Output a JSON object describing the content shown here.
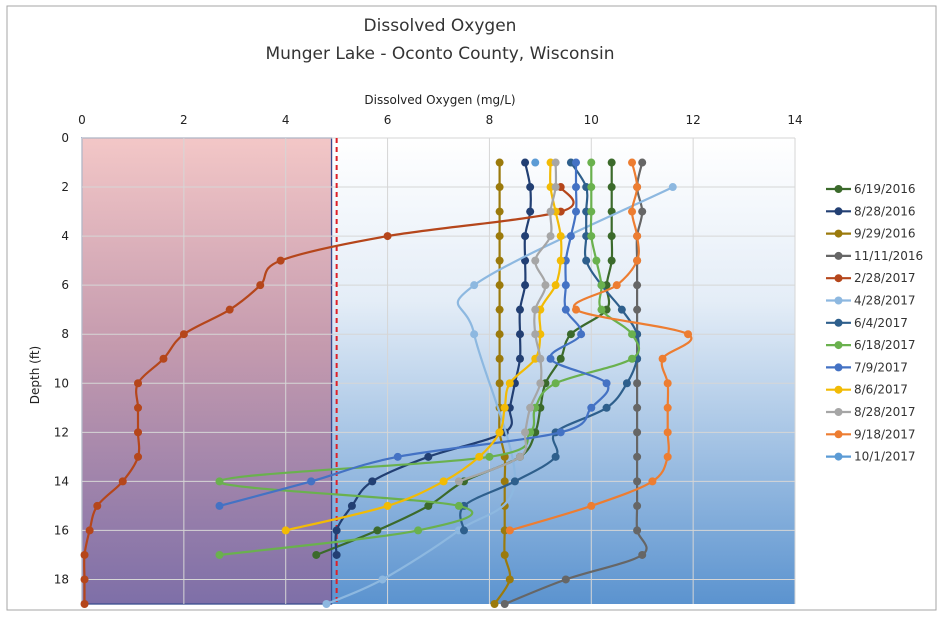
{
  "chart_data": {
    "type": "line",
    "title": "Dissolved Oxygen",
    "subtitle": "Munger Lake - Oconto County, Wisconsin",
    "xlabel": "Dissolved Oxygen (mg/L)",
    "ylabel": "Depth (ft)",
    "xlim": [
      0,
      14
    ],
    "ylim": [
      0,
      19
    ],
    "y_inverted": true,
    "x_axis_position": "top",
    "x_ticks": [
      "0",
      "2",
      "4",
      "6",
      "8",
      "10",
      "12",
      "14"
    ],
    "y_ticks": [
      "0",
      "2",
      "4",
      "6",
      "8",
      "10",
      "12",
      "14",
      "16",
      "18"
    ],
    "grid": true,
    "legend_position": "right",
    "threshold": {
      "value": 5,
      "style": "dashed",
      "color": "#dd1f26"
    },
    "shaded_region": {
      "from": 0,
      "to": 4.9,
      "color": "#c87a8a"
    },
    "series": [
      {
        "name": "6/19/2016",
        "color": "#3b6a2b",
        "points": [
          [
            10.4,
            1
          ],
          [
            10.4,
            2
          ],
          [
            10.4,
            3
          ],
          [
            10.4,
            4
          ],
          [
            10.4,
            5
          ],
          [
            10.3,
            6
          ],
          [
            10.3,
            7
          ],
          [
            9.6,
            8
          ],
          [
            9.4,
            9
          ],
          [
            9.1,
            10
          ],
          [
            9.0,
            11
          ],
          [
            8.9,
            12
          ],
          [
            8.6,
            13
          ],
          [
            7.5,
            14
          ],
          [
            6.8,
            15
          ],
          [
            5.8,
            16
          ],
          [
            4.6,
            17
          ]
        ]
      },
      {
        "name": "8/28/2016",
        "color": "#223f73",
        "points": [
          [
            8.7,
            1
          ],
          [
            8.8,
            2
          ],
          [
            8.8,
            3
          ],
          [
            8.7,
            4
          ],
          [
            8.7,
            5
          ],
          [
            8.7,
            6
          ],
          [
            8.6,
            7
          ],
          [
            8.6,
            8
          ],
          [
            8.6,
            9
          ],
          [
            8.5,
            10
          ],
          [
            8.4,
            11
          ],
          [
            8.3,
            12
          ],
          [
            6.8,
            13
          ],
          [
            5.7,
            14
          ],
          [
            5.3,
            15
          ],
          [
            5.0,
            16
          ],
          [
            5.0,
            17
          ]
        ]
      },
      {
        "name": "9/29/2016",
        "color": "#9b7a0c",
        "points": [
          [
            8.2,
            1
          ],
          [
            8.2,
            2
          ],
          [
            8.2,
            3
          ],
          [
            8.2,
            4
          ],
          [
            8.2,
            5
          ],
          [
            8.2,
            6
          ],
          [
            8.2,
            7
          ],
          [
            8.2,
            8
          ],
          [
            8.2,
            9
          ],
          [
            8.2,
            10
          ],
          [
            8.2,
            11
          ],
          [
            8.2,
            12
          ],
          [
            8.3,
            13
          ],
          [
            8.3,
            14
          ],
          [
            8.3,
            15
          ],
          [
            8.3,
            16
          ],
          [
            8.3,
            17
          ],
          [
            8.4,
            18
          ],
          [
            8.1,
            19
          ]
        ]
      },
      {
        "name": "11/11/2016",
        "color": "#666666",
        "points": [
          [
            11.0,
            1
          ],
          [
            10.9,
            2
          ],
          [
            11.0,
            3
          ],
          [
            10.9,
            4
          ],
          [
            10.9,
            5
          ],
          [
            10.9,
            6
          ],
          [
            10.9,
            7
          ],
          [
            10.9,
            8
          ],
          [
            10.9,
            9
          ],
          [
            10.9,
            10
          ],
          [
            10.9,
            11
          ],
          [
            10.9,
            12
          ],
          [
            10.9,
            13
          ],
          [
            10.9,
            14
          ],
          [
            10.9,
            15
          ],
          [
            10.9,
            16
          ],
          [
            11.0,
            17
          ],
          [
            9.5,
            18
          ],
          [
            8.3,
            19
          ]
        ]
      },
      {
        "name": "2/28/2017",
        "color": "#b5461b",
        "points": [
          [
            9.4,
            2
          ],
          [
            9.4,
            3
          ],
          [
            6.0,
            4
          ],
          [
            3.9,
            5
          ],
          [
            3.5,
            6
          ],
          [
            2.9,
            7
          ],
          [
            2.0,
            8
          ],
          [
            1.6,
            9
          ],
          [
            1.1,
            10
          ],
          [
            1.1,
            11
          ],
          [
            1.1,
            12
          ],
          [
            1.1,
            13
          ],
          [
            0.8,
            14
          ],
          [
            0.3,
            15
          ],
          [
            0.15,
            16
          ],
          [
            0.05,
            17
          ],
          [
            0.05,
            18
          ],
          [
            0.05,
            19
          ]
        ]
      },
      {
        "name": "4/28/2017",
        "color": "#8db8e0",
        "points": [
          [
            11.6,
            2
          ],
          [
            7.7,
            6
          ],
          [
            7.7,
            8
          ],
          [
            8.5,
            14
          ],
          [
            7.4,
            16
          ],
          [
            5.9,
            18
          ],
          [
            4.8,
            19
          ]
        ]
      },
      {
        "name": "6/4/2017",
        "color": "#2e5f8c",
        "points": [
          [
            9.6,
            1
          ],
          [
            9.9,
            2
          ],
          [
            9.9,
            3
          ],
          [
            9.9,
            4
          ],
          [
            9.9,
            5
          ],
          [
            10.2,
            6
          ],
          [
            10.6,
            7
          ],
          [
            10.9,
            8
          ],
          [
            10.9,
            9
          ],
          [
            10.7,
            10
          ],
          [
            10.3,
            11
          ],
          [
            9.3,
            12
          ],
          [
            9.3,
            13
          ],
          [
            8.5,
            14
          ],
          [
            7.5,
            15
          ],
          [
            7.5,
            16
          ]
        ]
      },
      {
        "name": "6/18/2017",
        "color": "#6ab14e",
        "points": [
          [
            10.0,
            1
          ],
          [
            10.0,
            2
          ],
          [
            10.0,
            3
          ],
          [
            10.0,
            4
          ],
          [
            10.1,
            5
          ],
          [
            10.2,
            6
          ],
          [
            10.2,
            7
          ],
          [
            10.8,
            8
          ],
          [
            10.8,
            9
          ],
          [
            9.3,
            10
          ],
          [
            8.9,
            11
          ],
          [
            8.8,
            12
          ],
          [
            8.0,
            13
          ],
          [
            2.7,
            14
          ],
          [
            7.4,
            15
          ],
          [
            6.6,
            16
          ],
          [
            2.7,
            17
          ]
        ]
      },
      {
        "name": "7/9/2017",
        "color": "#4472c4",
        "points": [
          [
            9.7,
            1
          ],
          [
            9.7,
            2
          ],
          [
            9.7,
            3
          ],
          [
            9.6,
            4
          ],
          [
            9.5,
            5
          ],
          [
            9.5,
            6
          ],
          [
            9.5,
            7
          ],
          [
            9.8,
            8
          ],
          [
            9.2,
            9
          ],
          [
            10.3,
            10
          ],
          [
            10.0,
            11
          ],
          [
            9.4,
            12
          ],
          [
            6.2,
            13
          ],
          [
            4.5,
            14
          ],
          [
            2.7,
            15
          ]
        ]
      },
      {
        "name": "8/6/2017",
        "color": "#f2bb05",
        "points": [
          [
            9.2,
            1
          ],
          [
            9.2,
            2
          ],
          [
            9.3,
            3
          ],
          [
            9.4,
            4
          ],
          [
            9.4,
            5
          ],
          [
            9.3,
            6
          ],
          [
            9.0,
            7
          ],
          [
            9.0,
            8
          ],
          [
            8.9,
            9
          ],
          [
            8.4,
            10
          ],
          [
            8.3,
            11
          ],
          [
            8.2,
            12
          ],
          [
            7.8,
            13
          ],
          [
            7.1,
            14
          ],
          [
            6.0,
            15
          ],
          [
            4.0,
            16
          ]
        ]
      },
      {
        "name": "8/28/2017",
        "color": "#a6a6a6",
        "points": [
          [
            9.3,
            1
          ],
          [
            9.3,
            2
          ],
          [
            9.2,
            3
          ],
          [
            9.2,
            4
          ],
          [
            8.9,
            5
          ],
          [
            9.1,
            6
          ],
          [
            8.9,
            7
          ],
          [
            8.9,
            8
          ],
          [
            9.0,
            9
          ],
          [
            9.0,
            10
          ],
          [
            8.8,
            11
          ],
          [
            8.7,
            12
          ],
          [
            8.6,
            13
          ],
          [
            7.4,
            14
          ]
        ]
      },
      {
        "name": "9/18/2017",
        "color": "#ed7d31",
        "points": [
          [
            10.8,
            1
          ],
          [
            10.9,
            2
          ],
          [
            10.8,
            3
          ],
          [
            10.9,
            4
          ],
          [
            10.9,
            5
          ],
          [
            10.5,
            6
          ],
          [
            9.7,
            7
          ],
          [
            11.9,
            8
          ],
          [
            11.4,
            9
          ],
          [
            11.5,
            10
          ],
          [
            11.5,
            11
          ],
          [
            11.5,
            12
          ],
          [
            11.5,
            13
          ],
          [
            11.2,
            14
          ],
          [
            10.0,
            15
          ],
          [
            8.4,
            16
          ]
        ]
      },
      {
        "name": "10/1/2017",
        "color": "#5b9bd5",
        "points": [
          [
            8.9,
            1
          ]
        ]
      }
    ]
  }
}
